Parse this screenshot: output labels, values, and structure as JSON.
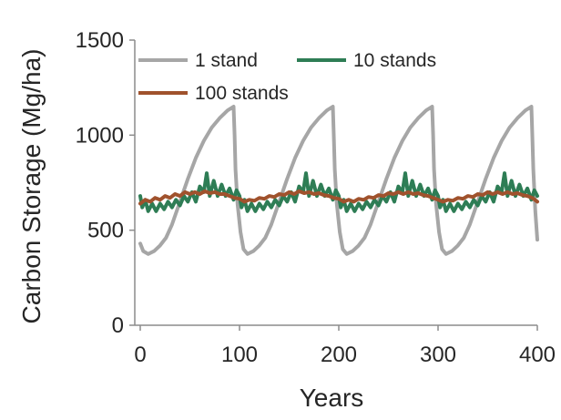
{
  "chart_data": {
    "type": "line",
    "title": "",
    "xlabel": "Years",
    "ylabel": "Carbon Storage (Mg/ha)",
    "xlim": [
      0,
      400
    ],
    "ylim": [
      0,
      1500
    ],
    "x_ticks": [
      0,
      100,
      200,
      300,
      400
    ],
    "y_ticks": [
      0,
      500,
      1000,
      1500
    ],
    "x_tick_labels": [
      "0",
      "100",
      "200",
      "300",
      "400"
    ],
    "y_tick_labels": [
      "0",
      "500",
      "1000",
      "1500"
    ],
    "grid": false,
    "legend_position": "top-left, inside plot",
    "series": [
      {
        "name": "1 stand",
        "color": "#a6a6a6",
        "points": [
          [
            0,
            430
          ],
          [
            3,
            390
          ],
          [
            8,
            375
          ],
          [
            14,
            390
          ],
          [
            20,
            420
          ],
          [
            26,
            460
          ],
          [
            32,
            530
          ],
          [
            40,
            650
          ],
          [
            48,
            770
          ],
          [
            56,
            880
          ],
          [
            64,
            970
          ],
          [
            72,
            1040
          ],
          [
            80,
            1090
          ],
          [
            88,
            1130
          ],
          [
            94,
            1150
          ],
          [
            95,
            1000
          ],
          [
            96,
            820
          ],
          [
            98,
            640
          ],
          [
            101,
            490
          ],
          [
            104,
            400
          ],
          [
            108,
            375
          ],
          [
            114,
            390
          ],
          [
            120,
            420
          ],
          [
            126,
            460
          ],
          [
            132,
            530
          ],
          [
            140,
            650
          ],
          [
            148,
            770
          ],
          [
            156,
            880
          ],
          [
            164,
            970
          ],
          [
            172,
            1040
          ],
          [
            180,
            1090
          ],
          [
            188,
            1130
          ],
          [
            194,
            1150
          ],
          [
            195,
            1000
          ],
          [
            196,
            820
          ],
          [
            198,
            640
          ],
          [
            201,
            490
          ],
          [
            204,
            400
          ],
          [
            208,
            375
          ],
          [
            214,
            390
          ],
          [
            220,
            420
          ],
          [
            226,
            460
          ],
          [
            232,
            530
          ],
          [
            240,
            650
          ],
          [
            248,
            770
          ],
          [
            256,
            880
          ],
          [
            264,
            970
          ],
          [
            272,
            1040
          ],
          [
            280,
            1090
          ],
          [
            288,
            1130
          ],
          [
            294,
            1150
          ],
          [
            295,
            1000
          ],
          [
            296,
            820
          ],
          [
            298,
            640
          ],
          [
            301,
            490
          ],
          [
            304,
            400
          ],
          [
            308,
            375
          ],
          [
            314,
            390
          ],
          [
            320,
            420
          ],
          [
            326,
            460
          ],
          [
            332,
            530
          ],
          [
            340,
            650
          ],
          [
            348,
            770
          ],
          [
            356,
            880
          ],
          [
            364,
            970
          ],
          [
            372,
            1040
          ],
          [
            380,
            1090
          ],
          [
            388,
            1130
          ],
          [
            394,
            1150
          ],
          [
            395,
            1000
          ],
          [
            396,
            820
          ],
          [
            398,
            600
          ],
          [
            400,
            450
          ]
        ]
      },
      {
        "name": "10 stands",
        "color": "#2e7d55",
        "points": [
          [
            0,
            680
          ],
          [
            2,
            620
          ],
          [
            5,
            660
          ],
          [
            8,
            600
          ],
          [
            12,
            640
          ],
          [
            16,
            600
          ],
          [
            20,
            640
          ],
          [
            24,
            610
          ],
          [
            28,
            650
          ],
          [
            32,
            620
          ],
          [
            36,
            660
          ],
          [
            40,
            630
          ],
          [
            44,
            680
          ],
          [
            48,
            650
          ],
          [
            52,
            700
          ],
          [
            56,
            650
          ],
          [
            60,
            730
          ],
          [
            64,
            700
          ],
          [
            67,
            800
          ],
          [
            70,
            680
          ],
          [
            74,
            760
          ],
          [
            78,
            680
          ],
          [
            82,
            740
          ],
          [
            86,
            680
          ],
          [
            90,
            720
          ],
          [
            94,
            660
          ],
          [
            97,
            710
          ],
          [
            100,
            680
          ],
          [
            102,
            620
          ],
          [
            105,
            660
          ],
          [
            108,
            600
          ],
          [
            112,
            640
          ],
          [
            116,
            600
          ],
          [
            120,
            640
          ],
          [
            124,
            610
          ],
          [
            128,
            650
          ],
          [
            132,
            620
          ],
          [
            136,
            660
          ],
          [
            140,
            630
          ],
          [
            144,
            680
          ],
          [
            148,
            650
          ],
          [
            152,
            700
          ],
          [
            156,
            650
          ],
          [
            160,
            730
          ],
          [
            164,
            700
          ],
          [
            167,
            800
          ],
          [
            170,
            680
          ],
          [
            174,
            760
          ],
          [
            178,
            680
          ],
          [
            182,
            740
          ],
          [
            186,
            680
          ],
          [
            190,
            720
          ],
          [
            194,
            660
          ],
          [
            197,
            710
          ],
          [
            200,
            680
          ],
          [
            202,
            620
          ],
          [
            205,
            660
          ],
          [
            208,
            600
          ],
          [
            212,
            640
          ],
          [
            216,
            600
          ],
          [
            220,
            640
          ],
          [
            224,
            610
          ],
          [
            228,
            650
          ],
          [
            232,
            620
          ],
          [
            236,
            660
          ],
          [
            240,
            630
          ],
          [
            244,
            680
          ],
          [
            248,
            650
          ],
          [
            252,
            700
          ],
          [
            256,
            650
          ],
          [
            260,
            730
          ],
          [
            264,
            700
          ],
          [
            267,
            800
          ],
          [
            270,
            680
          ],
          [
            274,
            760
          ],
          [
            278,
            680
          ],
          [
            282,
            740
          ],
          [
            286,
            680
          ],
          [
            290,
            720
          ],
          [
            294,
            660
          ],
          [
            297,
            710
          ],
          [
            300,
            680
          ],
          [
            302,
            620
          ],
          [
            305,
            660
          ],
          [
            308,
            600
          ],
          [
            312,
            640
          ],
          [
            316,
            600
          ],
          [
            320,
            640
          ],
          [
            324,
            610
          ],
          [
            328,
            650
          ],
          [
            332,
            620
          ],
          [
            336,
            660
          ],
          [
            340,
            630
          ],
          [
            344,
            680
          ],
          [
            348,
            650
          ],
          [
            352,
            700
          ],
          [
            356,
            650
          ],
          [
            360,
            730
          ],
          [
            364,
            700
          ],
          [
            367,
            800
          ],
          [
            370,
            680
          ],
          [
            374,
            760
          ],
          [
            378,
            680
          ],
          [
            382,
            740
          ],
          [
            386,
            680
          ],
          [
            390,
            720
          ],
          [
            394,
            660
          ],
          [
            397,
            710
          ],
          [
            400,
            680
          ]
        ]
      },
      {
        "name": "100 stands",
        "color": "#a0522d",
        "points": [
          [
            0,
            640
          ],
          [
            5,
            660
          ],
          [
            10,
            650
          ],
          [
            15,
            670
          ],
          [
            20,
            660
          ],
          [
            25,
            680
          ],
          [
            30,
            670
          ],
          [
            35,
            690
          ],
          [
            40,
            680
          ],
          [
            45,
            700
          ],
          [
            50,
            690
          ],
          [
            55,
            700
          ],
          [
            60,
            690
          ],
          [
            65,
            705
          ],
          [
            70,
            695
          ],
          [
            75,
            700
          ],
          [
            80,
            690
          ],
          [
            85,
            690
          ],
          [
            90,
            680
          ],
          [
            95,
            670
          ],
          [
            100,
            665
          ],
          [
            105,
            650
          ],
          [
            110,
            660
          ],
          [
            115,
            655
          ],
          [
            120,
            670
          ],
          [
            125,
            665
          ],
          [
            130,
            680
          ],
          [
            135,
            675
          ],
          [
            140,
            690
          ],
          [
            145,
            685
          ],
          [
            150,
            700
          ],
          [
            155,
            690
          ],
          [
            160,
            705
          ],
          [
            165,
            695
          ],
          [
            170,
            700
          ],
          [
            175,
            690
          ],
          [
            180,
            695
          ],
          [
            185,
            685
          ],
          [
            190,
            680
          ],
          [
            195,
            670
          ],
          [
            200,
            665
          ],
          [
            205,
            650
          ],
          [
            210,
            660
          ],
          [
            215,
            650
          ],
          [
            220,
            665
          ],
          [
            225,
            660
          ],
          [
            230,
            675
          ],
          [
            235,
            670
          ],
          [
            240,
            685
          ],
          [
            245,
            680
          ],
          [
            250,
            695
          ],
          [
            255,
            690
          ],
          [
            260,
            700
          ],
          [
            265,
            690
          ],
          [
            270,
            700
          ],
          [
            275,
            690
          ],
          [
            280,
            695
          ],
          [
            285,
            685
          ],
          [
            290,
            680
          ],
          [
            295,
            670
          ],
          [
            300,
            660
          ],
          [
            305,
            650
          ],
          [
            310,
            660
          ],
          [
            315,
            655
          ],
          [
            320,
            670
          ],
          [
            325,
            665
          ],
          [
            330,
            680
          ],
          [
            335,
            675
          ],
          [
            340,
            690
          ],
          [
            345,
            685
          ],
          [
            350,
            700
          ],
          [
            355,
            690
          ],
          [
            360,
            700
          ],
          [
            365,
            690
          ],
          [
            370,
            700
          ],
          [
            375,
            690
          ],
          [
            380,
            695
          ],
          [
            385,
            685
          ],
          [
            390,
            680
          ],
          [
            395,
            670
          ],
          [
            400,
            650
          ]
        ]
      }
    ]
  }
}
